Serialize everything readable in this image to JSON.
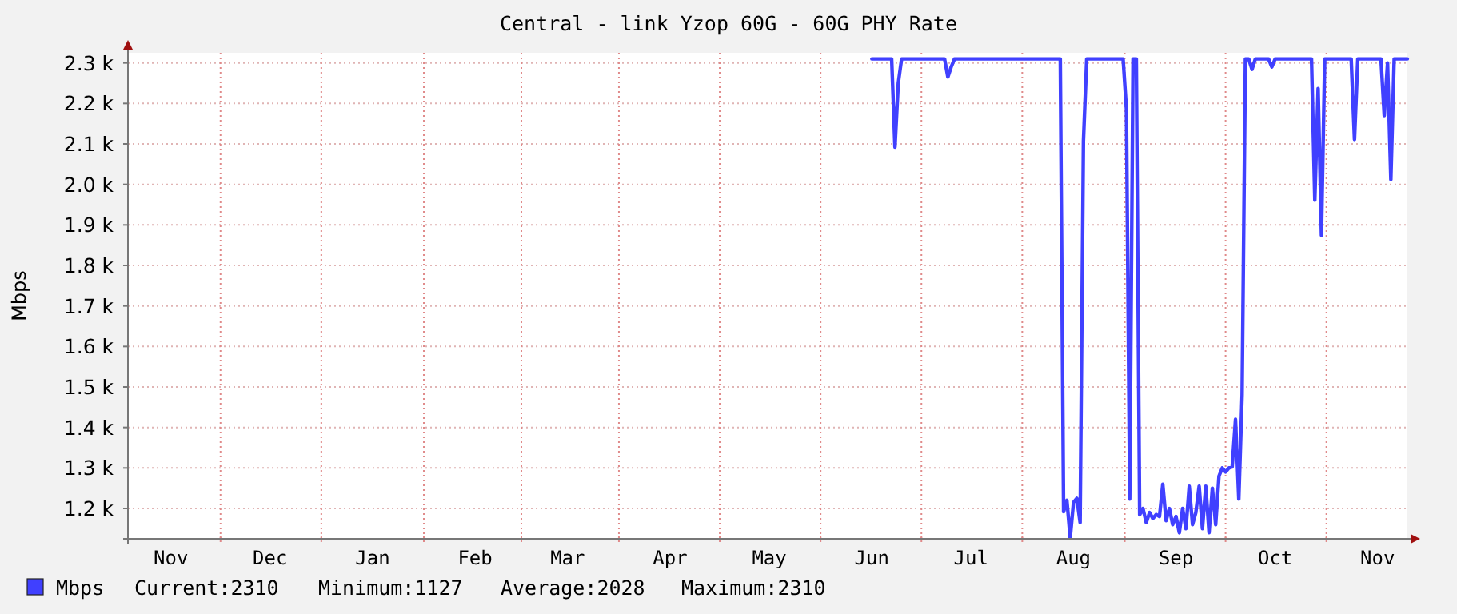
{
  "chart_data": {
    "type": "line",
    "title": "Central - link Yzop 60G - 60G PHY Rate",
    "ylabel": "Mbps",
    "categories": [
      null,
      null,
      null,
      null,
      null,
      null,
      null,
      null,
      null,
      null,
      null,
      null,
      null,
      "Nov",
      null,
      null,
      null,
      null,
      null,
      null,
      null,
      null,
      null,
      null,
      null,
      null,
      null,
      null,
      null,
      null,
      null,
      null,
      null,
      null,
      null,
      null,
      null,
      null,
      null,
      null,
      null,
      null,
      null,
      "Dec",
      null,
      null,
      null,
      null,
      null,
      null,
      null,
      null,
      null,
      null,
      null,
      null,
      null,
      null,
      null,
      null,
      null,
      null,
      null,
      null,
      null,
      null,
      null,
      null,
      null,
      null,
      null,
      null,
      null,
      null,
      "Jan",
      null,
      null,
      null,
      null,
      null,
      null,
      null,
      null,
      null,
      null,
      null,
      null,
      null,
      null,
      null,
      null,
      null,
      null,
      null,
      null,
      null,
      null,
      null,
      null,
      null,
      null,
      null,
      null,
      null,
      null,
      "Feb",
      null,
      null,
      null,
      null,
      null,
      null,
      null,
      null,
      null,
      null,
      null,
      null,
      null,
      null,
      null,
      null,
      null,
      null,
      null,
      null,
      null,
      null,
      null,
      null,
      null,
      null,
      null,
      "Mar",
      null,
      null,
      null,
      null,
      null,
      null,
      null,
      null,
      null,
      null,
      null,
      null,
      null,
      null,
      null,
      null,
      null,
      null,
      null,
      null,
      null,
      null,
      null,
      null,
      null,
      null,
      null,
      null,
      null,
      null,
      "Apr",
      null,
      null,
      null,
      null,
      null,
      null,
      null,
      null,
      null,
      null,
      null,
      null,
      null,
      null,
      null,
      null,
      null,
      null,
      null,
      null,
      null,
      null,
      null,
      null,
      null,
      null,
      null,
      null,
      null,
      "May",
      null,
      null,
      null,
      null,
      null,
      null,
      null,
      null,
      null,
      null,
      null,
      null,
      null,
      null,
      null,
      null,
      null,
      null,
      null,
      null,
      null,
      null,
      null,
      null,
      null,
      null,
      null,
      null,
      null,
      null,
      "Jun",
      null,
      null,
      null,
      null,
      null,
      null,
      null,
      null,
      null,
      null,
      null,
      null,
      null,
      null,
      null,
      null,
      null,
      null,
      null,
      null,
      null,
      null,
      null,
      null,
      null,
      null,
      null,
      null,
      null,
      "Jul",
      null,
      null,
      null,
      null,
      null,
      null,
      null,
      null,
      null,
      null,
      null,
      null,
      null,
      null,
      null,
      null,
      null,
      null,
      null,
      null,
      null,
      null,
      null,
      null,
      null,
      null,
      null,
      null,
      null,
      null,
      "Aug",
      null,
      null,
      null,
      null,
      null,
      null,
      null,
      null,
      null,
      null,
      null,
      null,
      null,
      null,
      null,
      null,
      null,
      null,
      null,
      null,
      null,
      null,
      null,
      null,
      null,
      null,
      null,
      null,
      null,
      null,
      "Sep",
      null,
      null,
      null,
      null,
      null,
      null,
      null,
      null,
      null,
      null,
      null,
      null,
      null,
      null,
      null,
      null,
      null,
      null,
      null,
      null,
      null,
      null,
      null,
      null,
      null,
      null,
      null,
      null,
      null,
      "Oct",
      null,
      null,
      null,
      null,
      null,
      null,
      null,
      null,
      null,
      null,
      null,
      null,
      null,
      null,
      null,
      null,
      null,
      null,
      null,
      null,
      null,
      null,
      null,
      null,
      null,
      null,
      null,
      null,
      null,
      null,
      "Nov",
      null,
      null,
      null,
      null,
      null,
      null,
      null,
      null,
      null
    ],
    "ylim": [
      1125,
      2325
    ],
    "yticks": [
      {
        "value": 1200,
        "label": "1.2 k"
      },
      {
        "value": 1300,
        "label": "1.3 k"
      },
      {
        "value": 1400,
        "label": "1.4 k"
      },
      {
        "value": 1500,
        "label": "1.5 k"
      },
      {
        "value": 1600,
        "label": "1.6 k"
      },
      {
        "value": 1700,
        "label": "1.7 k"
      },
      {
        "value": 1800,
        "label": "1.8 k"
      },
      {
        "value": 1900,
        "label": "1.9 k"
      },
      {
        "value": 2000,
        "label": "2.0 k"
      },
      {
        "value": 2100,
        "label": "2.1 k"
      },
      {
        "value": 2200,
        "label": "2.2 k"
      },
      {
        "value": 2300,
        "label": "2.3 k"
      }
    ],
    "grid": true,
    "legend": "bottom",
    "line_style": "solid",
    "marker": "none",
    "annotations": [
      "Current:2310",
      "Minimum:1127",
      "Average:2028",
      "Maximum:2310"
    ],
    "series": [
      {
        "name": "Mbps",
        "color": "#4040ff",
        "values": [
          null,
          null,
          null,
          null,
          null,
          null,
          null,
          null,
          null,
          null,
          null,
          null,
          null,
          null,
          null,
          null,
          null,
          null,
          null,
          null,
          null,
          null,
          null,
          null,
          null,
          null,
          null,
          null,
          null,
          null,
          null,
          null,
          null,
          null,
          null,
          null,
          null,
          null,
          null,
          null,
          null,
          null,
          null,
          null,
          null,
          null,
          null,
          null,
          null,
          null,
          null,
          null,
          null,
          null,
          null,
          null,
          null,
          null,
          null,
          null,
          null,
          null,
          null,
          null,
          null,
          null,
          null,
          null,
          null,
          null,
          null,
          null,
          null,
          null,
          null,
          null,
          null,
          null,
          null,
          null,
          null,
          null,
          null,
          null,
          null,
          null,
          null,
          null,
          null,
          null,
          null,
          null,
          null,
          null,
          null,
          null,
          null,
          null,
          null,
          null,
          null,
          null,
          null,
          null,
          null,
          null,
          null,
          null,
          null,
          null,
          null,
          null,
          null,
          null,
          null,
          null,
          null,
          null,
          null,
          null,
          null,
          null,
          null,
          null,
          null,
          null,
          null,
          null,
          null,
          null,
          null,
          null,
          null,
          null,
          null,
          null,
          null,
          null,
          null,
          null,
          null,
          null,
          null,
          null,
          null,
          null,
          null,
          null,
          null,
          null,
          null,
          null,
          null,
          null,
          null,
          null,
          null,
          null,
          null,
          null,
          null,
          null,
          null,
          null,
          null,
          null,
          null,
          null,
          null,
          null,
          null,
          null,
          null,
          null,
          null,
          null,
          null,
          null,
          null,
          null,
          null,
          null,
          null,
          null,
          null,
          null,
          null,
          null,
          null,
          null,
          null,
          null,
          null,
          null,
          null,
          null,
          null,
          null,
          null,
          null,
          null,
          null,
          null,
          null,
          null,
          null,
          null,
          null,
          null,
          null,
          null,
          null,
          null,
          null,
          null,
          null,
          null,
          null,
          null,
          null,
          null,
          null,
          null,
          null,
          null,
          2310,
          2310,
          2310,
          2310,
          2310,
          2310,
          2310,
          2092,
          2250,
          2310,
          2310,
          2310,
          2310,
          2310,
          2310,
          2310,
          2310,
          2310,
          2310,
          2310,
          2310,
          2310,
          2310,
          2265,
          2290,
          2310,
          2310,
          2310,
          2310,
          2310,
          2310,
          2310,
          2310,
          2310,
          2310,
          2310,
          2310,
          2310,
          2310,
          2310,
          2310,
          2310,
          2310,
          2310,
          2310,
          2310,
          2310,
          2310,
          2310,
          2310,
          2310,
          2310,
          2310,
          2310,
          2310,
          2310,
          2310,
          2310,
          1192,
          1220,
          1127,
          1215,
          1225,
          1165,
          2107,
          2310,
          2310,
          2310,
          2310,
          2310,
          2310,
          2310,
          2310,
          2310,
          2310,
          2310,
          2310,
          2186,
          1223,
          2310,
          2310,
          1184,
          1200,
          1165,
          1190,
          1175,
          1185,
          1180,
          1260,
          1170,
          1200,
          1160,
          1180,
          1140,
          1200,
          1150,
          1255,
          1160,
          1190,
          1255,
          1150,
          1255,
          1140,
          1250,
          1160,
          1280,
          1300,
          1290,
          1300,
          1303,
          1420,
          1223,
          1480,
          2310,
          2310,
          2284,
          2310,
          2310,
          2310,
          2310,
          2310,
          2290,
          2310,
          2310,
          2310,
          2310,
          2310,
          2310,
          2310,
          2310,
          2310,
          2310,
          2310,
          2310,
          1961,
          2237,
          1874,
          2310,
          2310,
          2310,
          2310,
          2310,
          2310,
          2310,
          2310,
          2310,
          2111,
          2310,
          2310,
          2310,
          2310,
          2310,
          2310,
          2310,
          2310,
          2170,
          2300,
          2012,
          2310,
          2310,
          2310,
          2310,
          2310
        ]
      }
    ]
  }
}
